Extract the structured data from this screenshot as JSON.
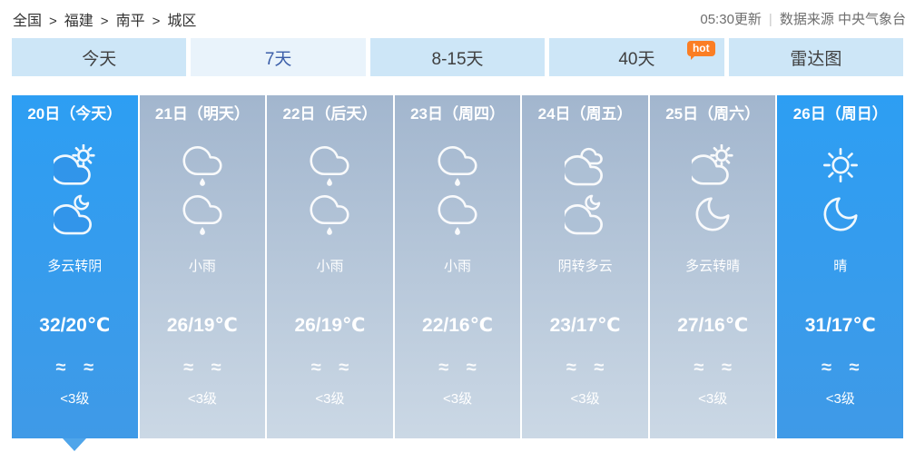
{
  "breadcrumb": {
    "separator": ">",
    "items": [
      "全国",
      "福建",
      "南平",
      "城区"
    ]
  },
  "header": {
    "update_time": "05:30更新",
    "divider": "|",
    "source": "数据来源 中央气象台"
  },
  "tabs": [
    {
      "id": "today",
      "label": "今天",
      "selected": false
    },
    {
      "id": "7days",
      "label": "7天",
      "selected": true
    },
    {
      "id": "8-15days",
      "label": "8-15天",
      "selected": false
    },
    {
      "id": "40days",
      "label": "40天",
      "selected": false,
      "badge": "hot"
    },
    {
      "id": "radar",
      "label": "雷达图",
      "selected": false
    }
  ],
  "forecast": {
    "days": [
      {
        "date": "20日（今天）",
        "day_icon": "cloud-sun-icon",
        "night_icon": "cloud-moon-icon",
        "condition": "多云转阴",
        "temperature": "32/20℃",
        "wind": "≈ ≈",
        "wind_level": "<3级",
        "theme": "blue",
        "selected": true
      },
      {
        "date": "21日（明天）",
        "day_icon": "rain-icon",
        "night_icon": "rain-icon",
        "condition": "小雨",
        "temperature": "26/19℃",
        "wind": "≈ ≈",
        "wind_level": "<3级",
        "theme": "gray",
        "selected": false
      },
      {
        "date": "22日（后天）",
        "day_icon": "rain-icon",
        "night_icon": "rain-icon",
        "condition": "小雨",
        "temperature": "26/19℃",
        "wind": "≈ ≈",
        "wind_level": "<3级",
        "theme": "gray",
        "selected": false
      },
      {
        "date": "23日（周四）",
        "day_icon": "rain-icon",
        "night_icon": "rain-icon",
        "condition": "小雨",
        "temperature": "22/16℃",
        "wind": "≈ ≈",
        "wind_level": "<3级",
        "theme": "gray",
        "selected": false
      },
      {
        "date": "24日（周五）",
        "day_icon": "overcast-icon",
        "night_icon": "cloud-moon-icon",
        "condition": "阴转多云",
        "temperature": "23/17℃",
        "wind": "≈ ≈",
        "wind_level": "<3级",
        "theme": "gray",
        "selected": false
      },
      {
        "date": "25日（周六）",
        "day_icon": "cloud-sun-icon",
        "night_icon": "moon-icon",
        "condition": "多云转晴",
        "temperature": "27/16℃",
        "wind": "≈ ≈",
        "wind_level": "<3级",
        "theme": "gray",
        "selected": false
      },
      {
        "date": "26日（周日）",
        "day_icon": "sun-icon",
        "night_icon": "moon-icon",
        "condition": "晴",
        "temperature": "31/17℃",
        "wind": "≈ ≈",
        "wind_level": "<3级",
        "theme": "blue",
        "selected": false
      }
    ]
  },
  "colors": {
    "selected_day_top": "#2d9ef3",
    "selected_day_bottom": "#3f9ae7",
    "day_top": "#a2b6ce",
    "day_bottom": "#cbd8e5",
    "tab_bg": "#cde6f7",
    "tab_selected_bg": "#e9f3fb",
    "tab_selected_text": "#3b5ea9",
    "hot_badge": "#fb7e24",
    "pointer": "#4fa5ea"
  }
}
